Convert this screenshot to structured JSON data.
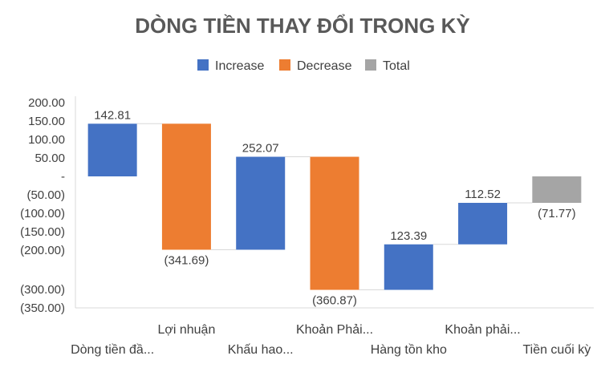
{
  "chart_data": {
    "type": "bar",
    "subtype": "waterfall",
    "title": "DÒNG TIỀN THAY ĐỔI TRONG KỲ",
    "legend": {
      "position": "top",
      "entries": [
        {
          "name": "Increase",
          "color": "#4472C4"
        },
        {
          "name": "Decrease",
          "color": "#ED7D31"
        },
        {
          "name": "Total",
          "color": "#A5A5A5"
        }
      ]
    },
    "categories": [
      "Dòng tiền đầ...",
      "Lợi nhuận",
      "Khấu hao...",
      "Khoản Phải...",
      "Hàng tồn kho",
      "Khoản phải...",
      "Tiền cuối kỳ"
    ],
    "values": [
      142.81,
      -341.69,
      252.07,
      -360.87,
      123.39,
      112.52,
      -71.77
    ],
    "kinds": [
      "increase",
      "decrease",
      "increase",
      "decrease",
      "increase",
      "increase",
      "total"
    ],
    "data_labels": [
      "142.81",
      "(341.69)",
      "252.07",
      "(360.87)",
      "123.39",
      "112.52",
      "(71.77)"
    ],
    "ylim": [
      -350,
      200
    ],
    "y_ticks": [
      200,
      150,
      100,
      50,
      0,
      -50,
      -100,
      -150,
      -200,
      -300,
      -350
    ],
    "y_tick_labels": [
      "200.00",
      "150.00",
      "100.00",
      "50.00",
      "-",
      "(50.00)",
      "(100.00)",
      "(150.00)",
      "(200.00)",
      "(300.00)",
      "(350.00)"
    ],
    "grid": false,
    "xlabel": "",
    "ylabel": ""
  }
}
